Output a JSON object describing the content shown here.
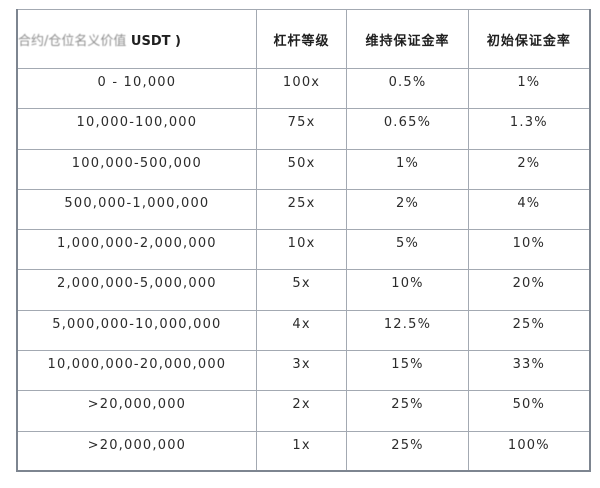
{
  "table": {
    "headers": {
      "position_value_faded": "合约/仓位名义价值",
      "position_value_suffix": " USDT )",
      "leverage": "杠杆等级",
      "maintenance_margin": "维持保证金率",
      "initial_margin": "初始保证金率"
    },
    "rows": [
      {
        "position_value": "0 - 10,000",
        "leverage": "100x",
        "maintenance_margin": "0.5%",
        "initial_margin": "1%"
      },
      {
        "position_value": "10,000-100,000",
        "leverage": "75x",
        "maintenance_margin": "0.65%",
        "initial_margin": "1.3%"
      },
      {
        "position_value": "100,000-500,000",
        "leverage": "50x",
        "maintenance_margin": "1%",
        "initial_margin": "2%"
      },
      {
        "position_value": "500,000-1,000,000",
        "leverage": "25x",
        "maintenance_margin": "2%",
        "initial_margin": "4%"
      },
      {
        "position_value": "1,000,000-2,000,000",
        "leverage": "10x",
        "maintenance_margin": "5%",
        "initial_margin": "10%"
      },
      {
        "position_value": "2,000,000-5,000,000",
        "leverage": "5x",
        "maintenance_margin": "10%",
        "initial_margin": "20%"
      },
      {
        "position_value": "5,000,000-10,000,000",
        "leverage": "4x",
        "maintenance_margin": "12.5%",
        "initial_margin": "25%"
      },
      {
        "position_value": "10,000,000-20,000,000",
        "leverage": "3x",
        "maintenance_margin": "15%",
        "initial_margin": "33%"
      },
      {
        "position_value": ">20,000,000",
        "leverage": "2x",
        "maintenance_margin": "25%",
        "initial_margin": "50%"
      },
      {
        "position_value": ">20,000,000",
        "leverage": "1x",
        "maintenance_margin": "25%",
        "initial_margin": "100%"
      }
    ]
  },
  "colors": {
    "border_outer": "#7d8590",
    "border_inner": "#a3a9b2",
    "text": "#2b2b2b",
    "background": "#ffffff"
  }
}
